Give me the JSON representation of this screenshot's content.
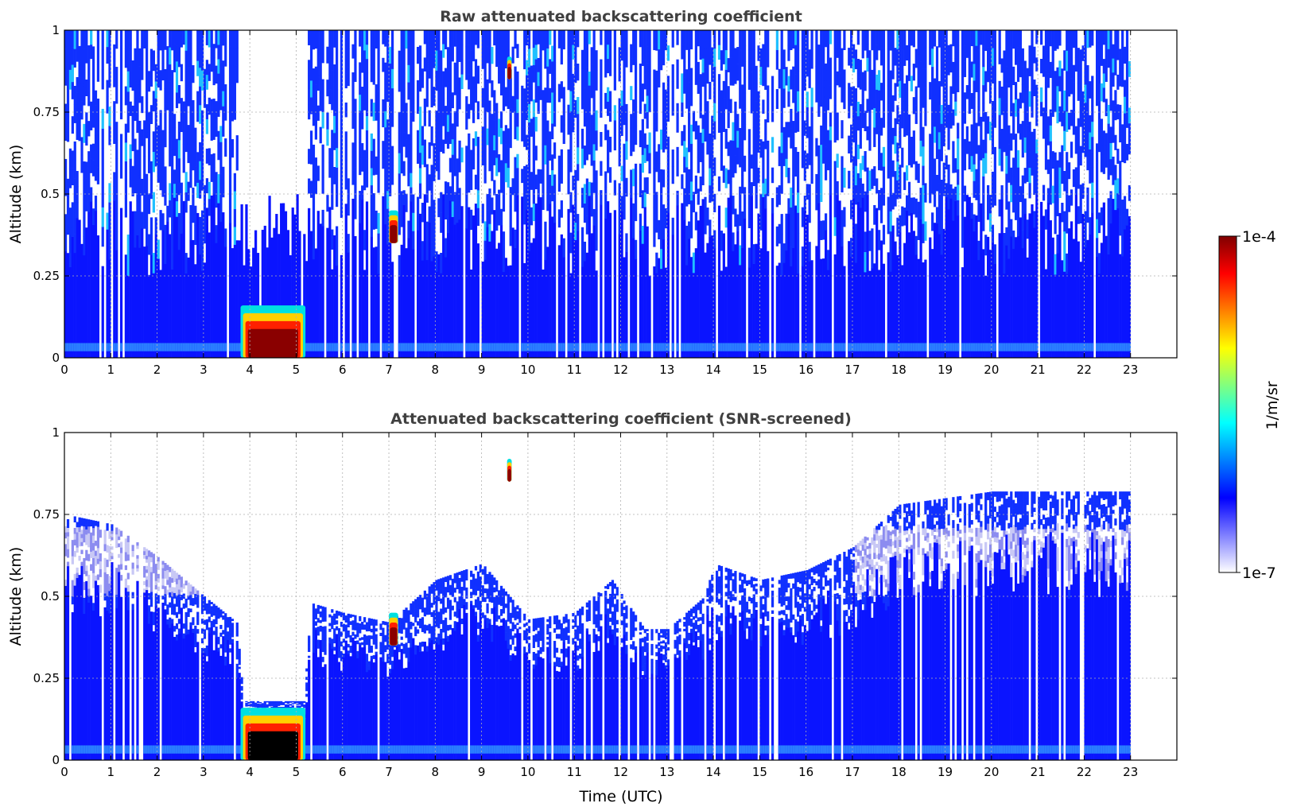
{
  "chart_data": [
    {
      "type": "heatmap",
      "title": "Raw attenuated backscattering coefficient",
      "xlabel": "",
      "ylabel": "Altitude (km)",
      "xlim": [
        0,
        24
      ],
      "ylim": [
        0,
        1
      ],
      "xticks": [
        0,
        1,
        2,
        3,
        4,
        5,
        6,
        7,
        8,
        9,
        10,
        11,
        12,
        13,
        14,
        15,
        16,
        17,
        18,
        19,
        20,
        21,
        22,
        23
      ],
      "yticks": [
        0,
        0.25,
        0.5,
        0.75,
        1
      ],
      "ytick_labels": [
        "0",
        "0.25",
        "0.5",
        "0.75",
        "1"
      ],
      "grid": true,
      "data_end_time": 23,
      "background_level": "~1e-6 (blue) throughout column",
      "features": [
        {
          "name": "dense low layer",
          "time": [
            3.8,
            5.2
          ],
          "altitude": [
            0.0,
            0.16
          ],
          "level": "1e-4"
        },
        {
          "name": "thin elevated feature",
          "time": [
            7.0,
            7.2
          ],
          "altitude": [
            0.35,
            0.45
          ],
          "level": "1e-4"
        },
        {
          "name": "high small feature",
          "time": [
            9.55,
            9.65
          ],
          "altitude": [
            0.85,
            0.92
          ],
          "level": "1e-4"
        }
      ]
    },
    {
      "type": "heatmap",
      "title": "Attenuated backscattering coefficient (SNR-screened)",
      "xlabel": "Time (UTC)",
      "ylabel": "Altitude (km)",
      "xlim": [
        0,
        24
      ],
      "ylim": [
        0,
        1
      ],
      "xticks": [
        0,
        1,
        2,
        3,
        4,
        5,
        6,
        7,
        8,
        9,
        10,
        11,
        12,
        13,
        14,
        15,
        16,
        17,
        18,
        19,
        20,
        21,
        22,
        23
      ],
      "yticks": [
        0,
        0.25,
        0.5,
        0.75,
        1
      ],
      "ytick_labels": [
        "0",
        "0.25",
        "0.5",
        "0.75",
        "1"
      ],
      "grid": true,
      "data_end_time": 23,
      "signal_top_km": [
        [
          0,
          0.75
        ],
        [
          1,
          0.72
        ],
        [
          2,
          0.62
        ],
        [
          3,
          0.5
        ],
        [
          3.7,
          0.42
        ],
        [
          3.85,
          0.18
        ],
        [
          5.15,
          0.18
        ],
        [
          5.3,
          0.48
        ],
        [
          6,
          0.45
        ],
        [
          7,
          0.42
        ],
        [
          8,
          0.55
        ],
        [
          9,
          0.6
        ],
        [
          10,
          0.43
        ],
        [
          11,
          0.45
        ],
        [
          11.8,
          0.55
        ],
        [
          12.5,
          0.4
        ],
        [
          13,
          0.4
        ],
        [
          13.8,
          0.5
        ],
        [
          14,
          0.6
        ],
        [
          15,
          0.55
        ],
        [
          16,
          0.58
        ],
        [
          17,
          0.65
        ],
        [
          18,
          0.78
        ],
        [
          19,
          0.8
        ],
        [
          20,
          0.82
        ],
        [
          21,
          0.82
        ],
        [
          22,
          0.82
        ],
        [
          23,
          0.82
        ]
      ],
      "features": [
        {
          "name": "dense low layer",
          "time": [
            3.8,
            5.2
          ],
          "altitude": [
            0.0,
            0.16
          ],
          "level": ">1e-4 (black)"
        },
        {
          "name": "thin elevated feature",
          "time": [
            7.0,
            7.2
          ],
          "altitude": [
            0.35,
            0.45
          ],
          "level": ">1e-4"
        },
        {
          "name": "high small feature",
          "time": [
            9.55,
            9.65
          ],
          "altitude": [
            0.85,
            0.92
          ],
          "level": ">1e-4"
        }
      ]
    }
  ],
  "colorbar": {
    "label": "1/m/sr",
    "max_label": "1e-4",
    "min_label": "1e-7",
    "scale": "log",
    "colormap": [
      "#ffffff",
      "#7f7fff",
      "#0000ff",
      "#0080ff",
      "#00ffff",
      "#80ff80",
      "#ffff00",
      "#ff8000",
      "#ff0000",
      "#800000"
    ]
  }
}
